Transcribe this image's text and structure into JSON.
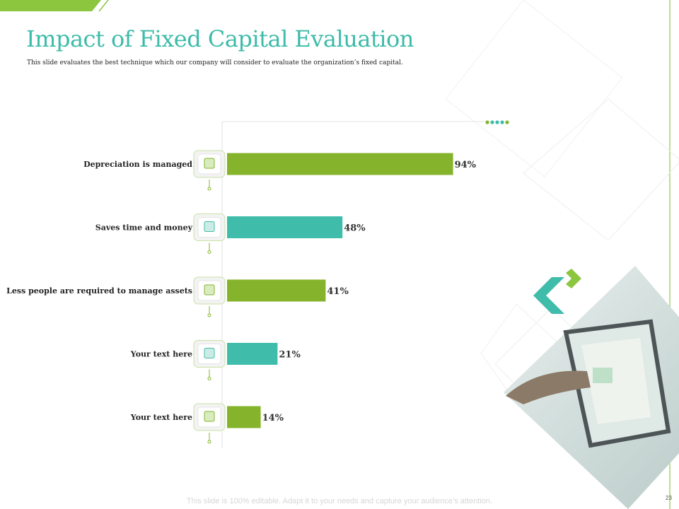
{
  "slide": {
    "title": "Impact of Fixed Capital Evaluation",
    "subtitle": "This slide evaluates the best technique which our company will consider to evaluate the organization’s fixed capital.",
    "footer": "This slide is 100% editable. Adapt it to your needs and capture your audience’s attention.",
    "page_number": "23"
  },
  "colors": {
    "title": "#3dbba9",
    "green": "#85b32c",
    "teal": "#3fbcaa",
    "accent_line": "#8cc63f"
  },
  "chart_data": {
    "type": "bar",
    "orientation": "horizontal",
    "categories": [
      "Depreciation is managed",
      "Saves time and money",
      "Less people are required to manage assets",
      "Your text here",
      "Your text here"
    ],
    "values": [
      94,
      48,
      41,
      21,
      14
    ],
    "value_labels": [
      "94%",
      "48%",
      "41%",
      "21%",
      "14%"
    ],
    "bar_colors": [
      "#85b32c",
      "#3fbcaa",
      "#85b32c",
      "#3fbcaa",
      "#85b32c"
    ],
    "icons": [
      "money-hand-icon",
      "cash-icon",
      "network-people-icon",
      "clipboard-icon",
      "calculator-icon"
    ],
    "unit": "%",
    "xlim": [
      0,
      100
    ],
    "legend": "none"
  }
}
